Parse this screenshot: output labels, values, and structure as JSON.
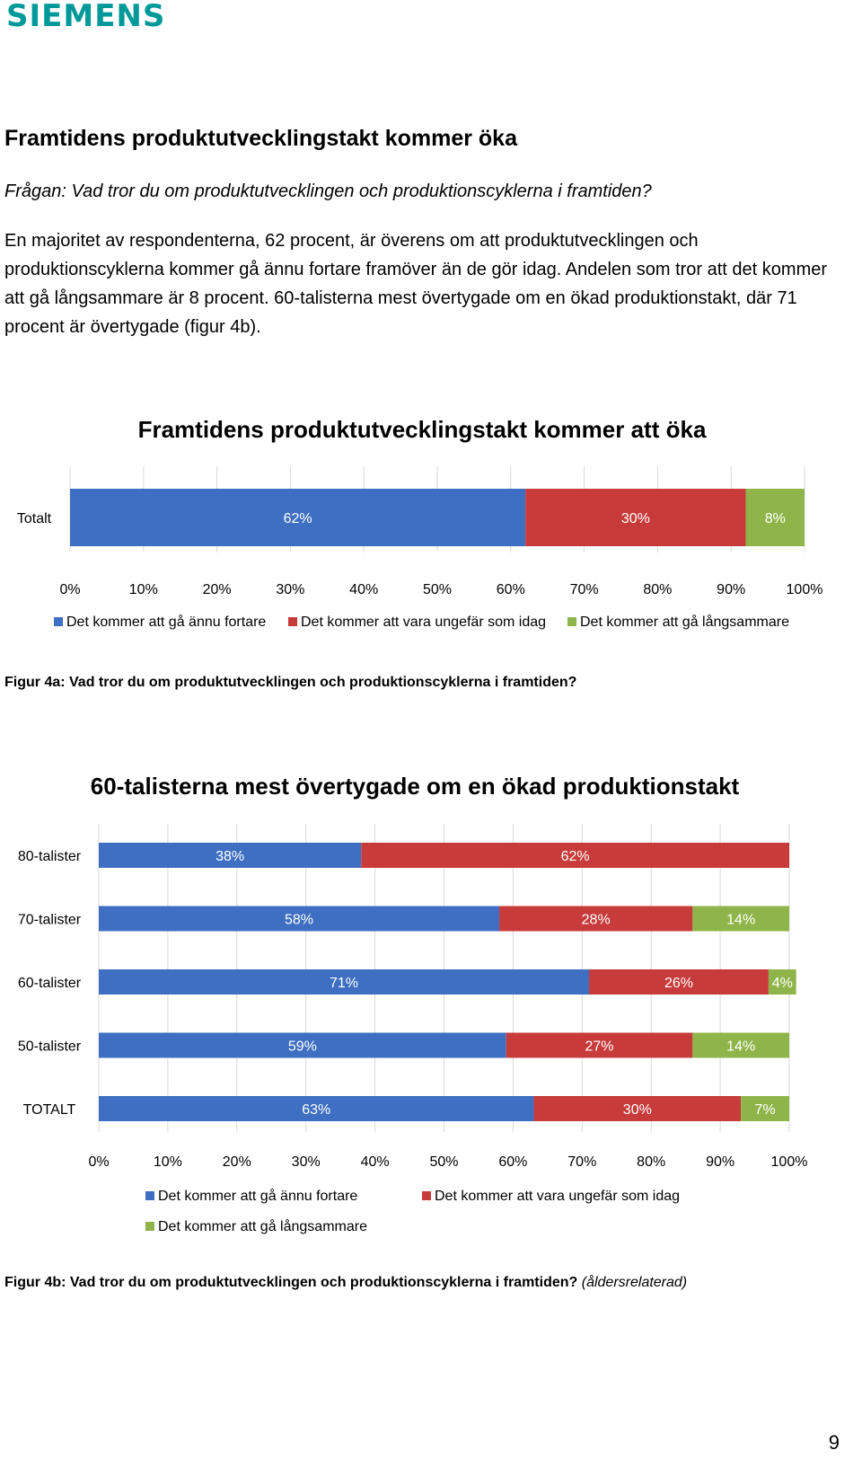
{
  "logo": "SIEMENS",
  "heading": "Framtidens produktutvecklingstakt kommer öka",
  "question": "Frågan: Vad tror du om produktutvecklingen och produktionscyklerna i framtiden?",
  "paragraph": "En majoritet av respondenterna, 62 procent, är överens om att produktutvecklingen och produktionscyklerna kommer gå ännu fortare framöver än de gör idag. Andelen som tror att det kommer att gå långsammare är 8 procent. 60-talisterna mest övertygade om en ökad produktionstakt, där 71 procent är övertygade (figur 4b).",
  "colors": {
    "faster": "#3f6fc2",
    "same": "#c83b3b",
    "slower": "#8fb54a",
    "gridline": "#d9d9d9",
    "text": "#000000"
  },
  "chart_data": [
    {
      "type": "bar",
      "orientation": "horizontal",
      "stacked": true,
      "title": "Framtidens produktutvecklingstakt kommer att öka",
      "categories": [
        "Totalt"
      ],
      "series": [
        {
          "name": "Det kommer att gå ännu fortare",
          "values": [
            62
          ],
          "labels": [
            "62%"
          ],
          "color": "#3f6fc2"
        },
        {
          "name": "Det kommer att vara ungefär som idag",
          "values": [
            30
          ],
          "labels": [
            "30%"
          ],
          "color": "#c83b3b"
        },
        {
          "name": "Det kommer att gå långsammare",
          "values": [
            8
          ],
          "labels": [
            "8%"
          ],
          "color": "#8fb54a"
        }
      ],
      "xticks": [
        "0%",
        "10%",
        "20%",
        "30%",
        "40%",
        "50%",
        "60%",
        "70%",
        "80%",
        "90%",
        "100%"
      ],
      "xlim": [
        0,
        100
      ],
      "grid": true,
      "legend": "bottom"
    },
    {
      "type": "bar",
      "orientation": "horizontal",
      "stacked": true,
      "title": "60-talisterna mest övertygade om en ökad produktionstakt",
      "categories": [
        "80-talister",
        "70-talister",
        "60-talister",
        "50-talister",
        "TOTALT"
      ],
      "series": [
        {
          "name": "Det kommer att gå ännu fortare",
          "values": [
            38,
            58,
            71,
            59,
            63
          ],
          "labels": [
            "38%",
            "58%",
            "71%",
            "59%",
            "63%"
          ],
          "color": "#3f6fc2"
        },
        {
          "name": "Det kommer att vara ungefär som idag",
          "values": [
            62,
            28,
            26,
            27,
            30
          ],
          "labels": [
            "62%",
            "28%",
            "26%",
            "27%",
            "30%"
          ],
          "color": "#c83b3b"
        },
        {
          "name": "Det kommer att gå långsammare",
          "values": [
            0,
            14,
            4,
            14,
            7
          ],
          "labels": [
            "",
            "14%",
            "4%",
            "14%",
            "7%"
          ],
          "color": "#8fb54a"
        }
      ],
      "xticks": [
        "0%",
        "10%",
        "20%",
        "30%",
        "40%",
        "50%",
        "60%",
        "70%",
        "80%",
        "90%",
        "100%"
      ],
      "xlim": [
        0,
        100
      ],
      "grid": true,
      "legend": "bottom"
    }
  ],
  "captions": {
    "fig_a": "Figur 4a: Vad tror du om produktutvecklingen och produktionscyklerna i framtiden?",
    "fig_b": "Figur 4b: Vad tror du om produktutvecklingen och produktionscyklerna i framtiden?",
    "fig_b_suffix": "(åldersrelaterad)"
  },
  "page_number": "9"
}
